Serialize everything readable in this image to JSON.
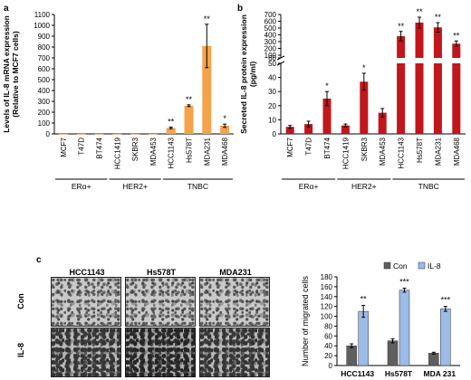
{
  "panels": {
    "a": "a",
    "b": "b",
    "c": "c"
  },
  "colors": {
    "orange": "#f5a34a",
    "red": "#c0161c",
    "con": "#5f5f5f",
    "il8": "#9cbbe6",
    "error": "#1a1a1a"
  },
  "chart_data": [
    {
      "type": "bar",
      "ylabel_line1": "Levels of IL-8 mRNA expression",
      "ylabel_line2": "(Relative to MCF7 cells)",
      "categories": [
        "MCF7",
        "T47D",
        "BT474",
        "HCC1419",
        "SKBR3",
        "MDA453",
        "HCC1143",
        "Hs578T",
        "MDA231",
        "MDA468"
      ],
      "values": [
        1,
        1,
        1,
        1,
        1,
        1,
        55,
        260,
        810,
        75
      ],
      "errors": [
        0,
        0,
        0,
        0,
        0,
        0,
        8,
        8,
        200,
        15
      ],
      "significance": [
        "",
        "",
        "",
        "",
        "",
        "",
        "**",
        "**",
        "**",
        "*"
      ],
      "ylim": [
        0,
        1100
      ],
      "yticks": [
        0,
        100,
        200,
        300,
        400,
        500,
        600,
        700,
        800,
        900,
        1000,
        1100
      ],
      "groups": [
        {
          "label": "ERα+",
          "from": 0,
          "to": 2
        },
        {
          "label": "HER2+",
          "from": 3,
          "to": 5
        },
        {
          "label": "TNBC",
          "from": 6,
          "to": 9
        }
      ]
    },
    {
      "type": "bar",
      "broken_axis": true,
      "ylabel_line1": "Secreted IL-8 protein expression",
      "ylabel_line2": "(pg/ml)",
      "categories": [
        "MCF7",
        "T47D",
        "BT474",
        "HCC1419",
        "SKBR3",
        "MDA453",
        "HCC1143",
        "Hs578T",
        "MDA231",
        "MDA468"
      ],
      "values": [
        5,
        7,
        25,
        6,
        37,
        15,
        380,
        580,
        510,
        270
      ],
      "errors": [
        1,
        2,
        5,
        1,
        6,
        3,
        70,
        80,
        70,
        40
      ],
      "significance": [
        "",
        "",
        "*",
        "",
        "*",
        "",
        "**",
        "**",
        "**",
        "**"
      ],
      "lower_range": [
        0,
        50
      ],
      "lower_ticks": [
        0,
        10,
        20,
        30,
        40,
        50
      ],
      "upper_range": [
        60,
        700
      ],
      "upper_ticks": [
        60,
        100,
        200,
        300,
        400,
        500,
        600,
        700
      ],
      "groups": [
        {
          "label": "ERα+",
          "from": 0,
          "to": 2
        },
        {
          "label": "HER2+",
          "from": 3,
          "to": 5
        },
        {
          "label": "TNBC",
          "from": 6,
          "to": 9
        }
      ]
    },
    {
      "type": "bar",
      "ylabel": "Number of migrated cells",
      "categories": [
        "HCC1143",
        "Hs578T",
        "MDA 231"
      ],
      "series": [
        {
          "name": "Con",
          "values": [
            40,
            50,
            25
          ],
          "errors": [
            4,
            4,
            2
          ]
        },
        {
          "name": "IL-8",
          "values": [
            110,
            153,
            115
          ],
          "errors": [
            12,
            4,
            5
          ]
        }
      ],
      "significance": [
        "**",
        "***",
        "***"
      ],
      "ylim": [
        0,
        180
      ],
      "yticks": [
        0,
        20,
        40,
        60,
        80,
        100,
        120,
        140,
        160,
        180
      ],
      "legend": "top-right"
    }
  ],
  "micrographs": {
    "columns": [
      "HCC1143",
      "Hs578T",
      "MDA231"
    ],
    "rows": [
      "Con",
      "IL-8"
    ]
  }
}
